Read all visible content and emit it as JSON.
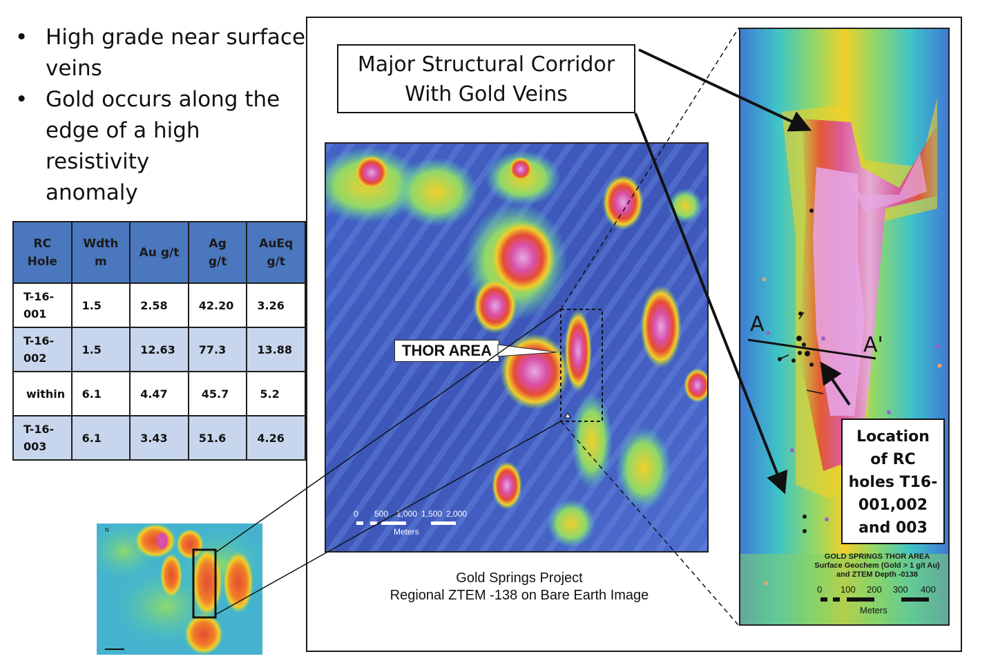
{
  "bullets": [
    {
      "line1": "High grade near surface",
      "line2": "veins",
      "line3": ""
    },
    {
      "line1": "Gold occurs along the",
      "line2": "edge of a high resistivity",
      "line3": "anomaly"
    }
  ],
  "table": {
    "headers": [
      {
        "l1": "RC",
        "l2": "Hole"
      },
      {
        "l1": "Wdth",
        "l2": "m"
      },
      {
        "l1": "Au g/t",
        "l2": ""
      },
      {
        "l1": "Ag",
        "l2": "g/t"
      },
      {
        "l1": "AuEq",
        "l2": "g/t"
      }
    ],
    "rows": [
      {
        "hole_l1": "T-16-",
        "hole_l2": "001",
        "width": "1.5",
        "au": "2.58",
        "ag": "42.20",
        "aueq": "3.26"
      },
      {
        "hole_l1": "T-16-",
        "hole_l2": "002",
        "width": "1.5",
        "au": "12.63",
        "ag": "77.3",
        "aueq": "13.88"
      },
      {
        "hole_l1": "within",
        "hole_l2": "",
        "width": "6.1",
        "au": "4.47",
        "ag": "45.7",
        "aueq": "5.2"
      },
      {
        "hole_l1": "T-16-",
        "hole_l2": "003",
        "width": "6.1",
        "au": "3.43",
        "ag": "51.6",
        "aueq": "4.26"
      }
    ]
  },
  "callout": {
    "line1": "Major Structural Corridor",
    "line2": "With Gold Veins"
  },
  "thor_label": "THOR AREA",
  "main_map": {
    "caption_line1": "Gold Springs Project",
    "caption_line2": "Regional ZTEM -138 on Bare Earth Image",
    "scale_ticks": [
      "0",
      "500",
      "1,000",
      "1,500",
      "2,000"
    ],
    "scale_unit": "Meters"
  },
  "right_map": {
    "title_line1": "GOLD SPRINGS THOR AREA",
    "title_line2": "Surface Geochem (Gold > 1 g/t Au)",
    "title_line3": "and ZTEM Depth -0138",
    "scale_ticks": [
      "0",
      "100",
      "200",
      "300",
      "400"
    ],
    "scale_unit": "Meters",
    "section_start": "A",
    "section_end": "A'"
  },
  "location_box": {
    "l1": "Location",
    "l2": "of RC",
    "l3": "holes T16-",
    "l4": "001,002",
    "l5": "and 003"
  },
  "colors": {
    "table_header": "#4a77bd",
    "table_alt_row": "#c7d6ec",
    "map_low": "#3f5bbf",
    "map_high": "#d94fa7"
  }
}
